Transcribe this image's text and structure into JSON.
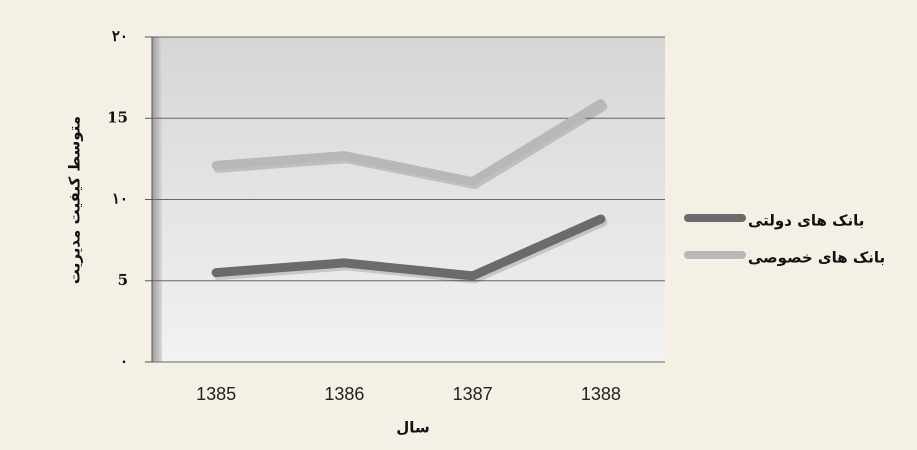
{
  "chart_data": {
    "type": "line",
    "y_label": "متوسط کیفیت مدیریت",
    "x_label": "سال",
    "categories": [
      "1385",
      "1386",
      "1387",
      "1388"
    ],
    "series": [
      {
        "name": "بانک های دولتی",
        "color": "#6b6b6b",
        "values": [
          5.5,
          6.1,
          5.3,
          8.8
        ]
      },
      {
        "name": "بانک های خصوصی",
        "color": "#b8b8b8",
        "values": [
          12.1,
          12.7,
          11.1,
          15.9
        ]
      }
    ],
    "ylim": [
      0,
      20
    ],
    "yticks": [
      {
        "value": 0,
        "label": "۰"
      },
      {
        "value": 5,
        "label": "5"
      },
      {
        "value": 10,
        "label": "۱۰"
      },
      {
        "value": 15,
        "label": "15"
      },
      {
        "value": 20,
        "label": "۲۰"
      }
    ],
    "grid": true
  }
}
